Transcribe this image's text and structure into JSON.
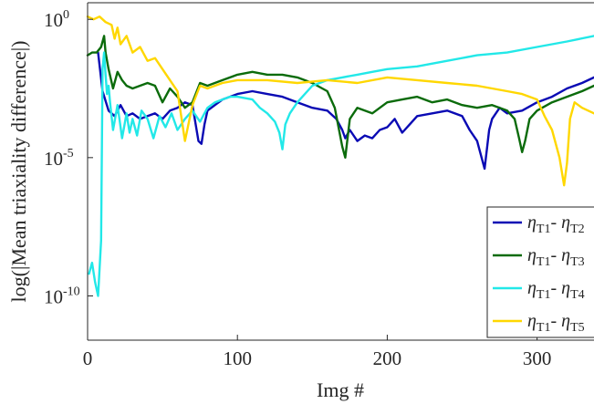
{
  "chart_data": {
    "type": "line",
    "xlabel": "Img #",
    "ylabel": "log(|Mean triaxiality difference|)",
    "xlim": [
      0,
      338
    ],
    "ylim_log10": [
      -11.6,
      0.6
    ],
    "y_scale": "log",
    "grid": false,
    "legend_position": "bottom-right",
    "x_ticks": [
      0,
      100,
      200,
      300
    ],
    "x_tick_labels": [
      "0",
      "100",
      "200",
      "300"
    ],
    "y_ticks_log10": [
      0,
      -5,
      -10
    ],
    "y_tick_labels": [
      {
        "base": "10",
        "exp": "0"
      },
      {
        "base": "10",
        "exp": "-5"
      },
      {
        "base": "10",
        "exp": "-10"
      }
    ],
    "series": [
      {
        "name": "η_T1 - η_T2",
        "legend": {
          "sym1": "η",
          "sub1": "T1",
          "sep": "- ",
          "sym2": "η",
          "sub2": "T2"
        },
        "color": "#0a0ab4",
        "x": [
          7,
          10,
          14,
          18,
          22,
          26,
          30,
          35,
          40,
          45,
          50,
          55,
          60,
          65,
          70,
          74,
          76,
          78,
          80,
          85,
          90,
          100,
          110,
          120,
          130,
          140,
          150,
          160,
          166,
          170,
          172,
          175,
          180,
          185,
          190,
          195,
          200,
          205,
          210,
          215,
          220,
          230,
          240,
          250,
          255,
          260,
          263,
          265,
          268,
          270,
          275,
          280,
          290,
          300,
          310,
          320,
          330,
          338
        ],
        "log10_y": [
          -1.2,
          -2.6,
          -3.3,
          -3.5,
          -3.1,
          -3.5,
          -3.4,
          -3.6,
          -3.5,
          -3.4,
          -3.6,
          -3.3,
          -3.2,
          -3.0,
          -3.1,
          -4.4,
          -4.5,
          -3.8,
          -3.3,
          -3.1,
          -2.9,
          -2.7,
          -2.6,
          -2.7,
          -2.8,
          -3.0,
          -3.2,
          -3.3,
          -3.6,
          -4.0,
          -4.3,
          -4.0,
          -4.4,
          -4.2,
          -4.3,
          -4.0,
          -3.9,
          -3.6,
          -4.1,
          -3.8,
          -3.5,
          -3.4,
          -3.3,
          -3.5,
          -4.0,
          -4.4,
          -5.0,
          -5.4,
          -4.0,
          -3.6,
          -3.2,
          -3.4,
          -3.3,
          -3.0,
          -2.8,
          -2.5,
          -2.3,
          -2.1
        ]
      },
      {
        "name": "η_T1 - η_T3",
        "legend": {
          "sym1": "η",
          "sub1": "T1",
          "sep": "- ",
          "sym2": "η",
          "sub2": "T3"
        },
        "color": "#0b6b0b",
        "x": [
          0,
          3,
          6,
          9,
          11,
          12,
          14,
          17,
          20,
          23,
          26,
          30,
          35,
          40,
          45,
          50,
          55,
          60,
          65,
          70,
          75,
          80,
          90,
          100,
          110,
          120,
          130,
          140,
          150,
          160,
          165,
          170,
          172,
          175,
          180,
          190,
          200,
          210,
          220,
          230,
          240,
          250,
          260,
          270,
          280,
          285,
          288,
          290,
          292,
          295,
          300,
          310,
          320,
          330,
          338
        ],
        "log10_y": [
          -1.3,
          -1.2,
          -1.2,
          -1.0,
          -0.6,
          -1.2,
          -1.8,
          -2.5,
          -1.9,
          -2.2,
          -2.4,
          -2.5,
          -2.4,
          -2.3,
          -2.4,
          -3.0,
          -2.5,
          -2.8,
          -3.2,
          -3.0,
          -2.3,
          -2.4,
          -2.2,
          -2.0,
          -1.9,
          -2.0,
          -2.0,
          -2.1,
          -2.3,
          -2.6,
          -3.2,
          -4.6,
          -5.0,
          -3.6,
          -3.2,
          -3.4,
          -3.0,
          -2.9,
          -2.8,
          -3.0,
          -2.9,
          -3.1,
          -3.2,
          -3.1,
          -3.3,
          -3.6,
          -4.3,
          -4.8,
          -4.4,
          -3.6,
          -3.3,
          -3.0,
          -2.8,
          -2.6,
          -2.4
        ]
      },
      {
        "name": "η_T1 - η_T4",
        "legend": {
          "sym1": "η",
          "sub1": "T1",
          "sep": "- ",
          "sym2": "η",
          "sub2": "T4"
        },
        "color": "#22e8e8",
        "x": [
          1,
          3,
          5,
          7,
          9,
          10,
          11,
          12,
          13,
          14,
          15,
          17,
          20,
          23,
          26,
          28,
          30,
          33,
          36,
          40,
          44,
          48,
          52,
          56,
          60,
          65,
          70,
          75,
          80,
          85,
          90,
          95,
          100,
          110,
          115,
          120,
          125,
          128,
          130,
          132,
          135,
          140,
          150,
          160,
          170,
          180,
          190,
          200,
          220,
          240,
          260,
          280,
          300,
          320,
          338
        ],
        "log10_y": [
          -9.2,
          -8.8,
          -9.5,
          -10.0,
          -8.0,
          -1.8,
          -1.2,
          -2.0,
          -2.7,
          -2.4,
          -3.0,
          -4.0,
          -3.1,
          -4.3,
          -3.4,
          -4.1,
          -3.6,
          -4.2,
          -3.3,
          -3.6,
          -4.3,
          -3.5,
          -3.9,
          -3.4,
          -4.0,
          -3.6,
          -3.3,
          -3.7,
          -3.2,
          -3.0,
          -2.9,
          -2.8,
          -2.8,
          -2.9,
          -3.2,
          -3.4,
          -3.7,
          -4.1,
          -4.7,
          -3.8,
          -3.4,
          -3.0,
          -2.4,
          -2.2,
          -2.1,
          -2.0,
          -1.9,
          -1.8,
          -1.7,
          -1.5,
          -1.3,
          -1.2,
          -1.0,
          -0.8,
          -0.6
        ]
      },
      {
        "name": "η_T1 - η_T5",
        "legend": {
          "sym1": "η",
          "sub1": "T1",
          "sep": "- ",
          "sym2": "η",
          "sub2": "T5"
        },
        "color": "#ffd700",
        "x": [
          0,
          4,
          8,
          12,
          16,
          18,
          20,
          22,
          26,
          30,
          35,
          40,
          45,
          50,
          55,
          60,
          65,
          70,
          75,
          80,
          90,
          100,
          120,
          140,
          160,
          180,
          200,
          220,
          240,
          260,
          280,
          290,
          300,
          305,
          310,
          315,
          318,
          320,
          322,
          325,
          330,
          338
        ],
        "log10_y": [
          0.1,
          0.0,
          0.1,
          -0.1,
          -0.2,
          -0.7,
          -0.3,
          -0.9,
          -0.6,
          -1.2,
          -1.0,
          -1.5,
          -1.4,
          -1.8,
          -2.2,
          -2.6,
          -4.4,
          -3.1,
          -2.4,
          -2.5,
          -2.3,
          -2.2,
          -2.2,
          -2.3,
          -2.2,
          -2.3,
          -2.1,
          -2.2,
          -2.3,
          -2.4,
          -2.6,
          -2.7,
          -2.9,
          -3.5,
          -4.0,
          -5.0,
          -6.0,
          -5.2,
          -3.6,
          -3.0,
          -3.2,
          -3.4
        ]
      }
    ]
  }
}
